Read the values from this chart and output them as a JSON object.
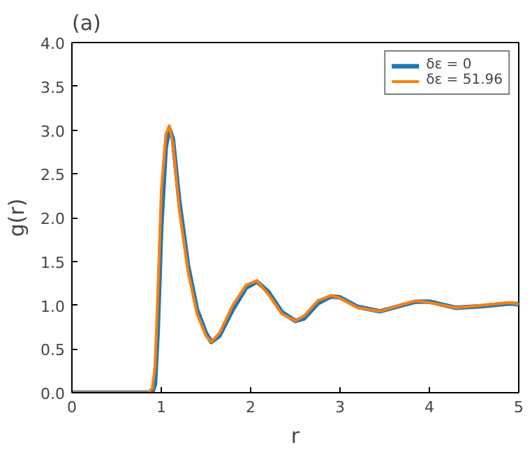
{
  "chart_data": {
    "type": "line",
    "title": "(a)",
    "xlabel": "r",
    "ylabel": "g(r)",
    "xlim": [
      0,
      5
    ],
    "ylim": [
      0,
      4.0
    ],
    "xticks": [
      0,
      1,
      2,
      3,
      4,
      5
    ],
    "yticks": [
      {
        "value": 0,
        "label": "0.0"
      },
      {
        "value": 0.5,
        "label": "0.5"
      },
      {
        "value": 1,
        "label": "1.0"
      },
      {
        "value": 1.5,
        "label": "1.5"
      },
      {
        "value": 2,
        "label": "2.0"
      },
      {
        "value": 2.5,
        "label": "2.5"
      },
      {
        "value": 3,
        "label": "3.0"
      },
      {
        "value": 3.5,
        "label": "3.5"
      },
      {
        "value": 4,
        "label": "4.0"
      }
    ],
    "x": [
      0,
      0.85,
      0.9,
      0.93,
      0.96,
      1.0,
      1.05,
      1.09,
      1.13,
      1.2,
      1.3,
      1.4,
      1.5,
      1.56,
      1.65,
      1.8,
      1.95,
      2.07,
      2.2,
      2.35,
      2.5,
      2.6,
      2.75,
      2.9,
      3.0,
      3.2,
      3.45,
      3.7,
      3.85,
      4.0,
      4.3,
      4.6,
      4.9,
      5.0
    ],
    "series": [
      {
        "name": "δε = 0",
        "color": "#1f77b4",
        "values": [
          0,
          0,
          0.01,
          0.1,
          0.7,
          1.9,
          2.8,
          3.02,
          2.9,
          2.2,
          1.45,
          0.95,
          0.68,
          0.58,
          0.65,
          0.95,
          1.2,
          1.27,
          1.15,
          0.92,
          0.82,
          0.85,
          1.02,
          1.1,
          1.09,
          0.98,
          0.93,
          1.0,
          1.04,
          1.04,
          0.97,
          0.99,
          1.02,
          1.01
        ]
      },
      {
        "name": "δε = 51.96",
        "color": "#ff7f0e",
        "values": [
          0,
          0,
          0.05,
          0.3,
          1.1,
          2.3,
          2.95,
          3.05,
          2.85,
          2.1,
          1.38,
          0.9,
          0.65,
          0.58,
          0.68,
          1.0,
          1.23,
          1.28,
          1.12,
          0.9,
          0.82,
          0.88,
          1.05,
          1.11,
          1.08,
          0.97,
          0.93,
          1.01,
          1.05,
          1.03,
          0.97,
          1.0,
          1.03,
          1.01
        ]
      }
    ],
    "legend": "top right",
    "grid": false,
    "line_style": "solid"
  }
}
